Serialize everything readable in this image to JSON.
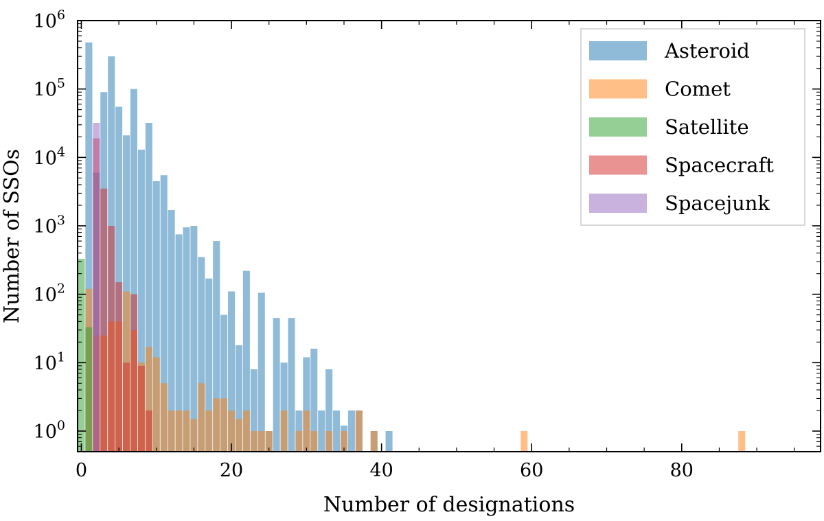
{
  "chart_data": {
    "type": "bar",
    "xlabel": "Number of designations",
    "ylabel": "Number of SSOs",
    "xlim": [
      -0.5,
      98.5
    ],
    "ylim": [
      0.5,
      1000000
    ],
    "yscale": "log",
    "x_ticks": [
      0,
      20,
      40,
      60,
      80
    ],
    "x_tick_labels": [
      "0",
      "20",
      "40",
      "60",
      "80"
    ],
    "y_ticks": [
      1,
      10,
      100,
      1000,
      10000,
      100000,
      1000000
    ],
    "y_tick_labels": [
      {
        "base": "10",
        "exp": "0"
      },
      {
        "base": "10",
        "exp": "1"
      },
      {
        "base": "10",
        "exp": "2"
      },
      {
        "base": "10",
        "exp": "3"
      },
      {
        "base": "10",
        "exp": "4"
      },
      {
        "base": "10",
        "exp": "5"
      },
      {
        "base": "10",
        "exp": "6"
      }
    ],
    "grid": false,
    "legend_position": "top-right",
    "series": [
      {
        "name": "Asteroid",
        "color": "#1f77b4",
        "x": [
          1,
          2,
          3,
          4,
          5,
          6,
          7,
          8,
          9,
          10,
          11,
          12,
          13,
          14,
          15,
          16,
          17,
          18,
          19,
          20,
          21,
          22,
          23,
          24,
          25,
          26,
          27,
          28,
          29,
          30,
          31,
          32,
          33,
          34,
          35,
          36,
          37,
          39,
          41
        ],
        "values": [
          480000,
          6000,
          90000,
          300000,
          55000,
          21000,
          100000,
          13000,
          32000,
          4500,
          5500,
          1700,
          750,
          950,
          1000,
          350,
          170,
          600,
          50,
          110,
          18,
          220,
          8,
          105,
          1,
          45,
          10,
          45,
          2,
          12,
          16,
          2,
          8,
          2,
          1.2,
          2,
          2,
          1,
          1
        ]
      },
      {
        "name": "Comet",
        "color": "#ff7f0e",
        "x": [
          1,
          2,
          3,
          4,
          5,
          6,
          7,
          8,
          9,
          10,
          11,
          12,
          13,
          14,
          15,
          16,
          17,
          18,
          19,
          20,
          21,
          22,
          23,
          24,
          25,
          27,
          29,
          30,
          31,
          33,
          35,
          37,
          39,
          59,
          88
        ],
        "values": [
          120,
          25,
          25,
          40,
          40,
          110,
          30,
          10,
          17,
          12,
          5,
          2,
          2,
          2,
          1.5,
          5,
          2,
          3,
          3,
          2,
          1.5,
          2,
          1,
          1,
          1,
          2,
          1,
          2,
          1,
          1,
          1,
          2,
          1,
          1,
          1
        ]
      },
      {
        "name": "Satellite",
        "color": "#2ca02c",
        "x": [
          0,
          1
        ],
        "values": [
          330,
          33
        ]
      },
      {
        "name": "Spacecraft",
        "color": "#d62728",
        "x": [
          2,
          3,
          4,
          5,
          6,
          7,
          8,
          9
        ],
        "values": [
          19000,
          3500,
          1000,
          150,
          10,
          100,
          9,
          2
        ]
      },
      {
        "name": "Spacejunk",
        "color": "#9467bd",
        "x": [
          2
        ],
        "values": [
          32000
        ]
      }
    ]
  }
}
